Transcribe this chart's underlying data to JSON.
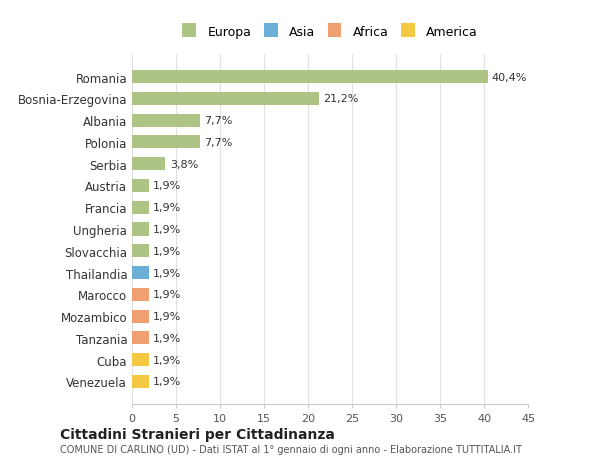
{
  "countries": [
    "Romania",
    "Bosnia-Erzegovina",
    "Albania",
    "Polonia",
    "Serbia",
    "Austria",
    "Francia",
    "Ungheria",
    "Slovacchia",
    "Thailandia",
    "Marocco",
    "Mozambico",
    "Tanzania",
    "Cuba",
    "Venezuela"
  ],
  "values": [
    40.4,
    21.2,
    7.7,
    7.7,
    3.8,
    1.9,
    1.9,
    1.9,
    1.9,
    1.9,
    1.9,
    1.9,
    1.9,
    1.9,
    1.9
  ],
  "labels": [
    "40,4%",
    "21,2%",
    "7,7%",
    "7,7%",
    "3,8%",
    "1,9%",
    "1,9%",
    "1,9%",
    "1,9%",
    "1,9%",
    "1,9%",
    "1,9%",
    "1,9%",
    "1,9%",
    "1,9%"
  ],
  "continent": [
    "Europa",
    "Europa",
    "Europa",
    "Europa",
    "Europa",
    "Europa",
    "Europa",
    "Europa",
    "Europa",
    "Asia",
    "Africa",
    "Africa",
    "Africa",
    "America",
    "America"
  ],
  "colors": {
    "Europa": "#aec484",
    "Asia": "#6baed6",
    "Africa": "#f0a070",
    "America": "#f5c842"
  },
  "legend_colors": {
    "Europa": "#aec484",
    "Asia": "#6baed6",
    "Africa": "#f0a070",
    "America": "#f5c842"
  },
  "title": "Cittadini Stranieri per Cittadinanza",
  "subtitle": "COMUNE DI CARLINO (UD) - Dati ISTAT al 1° gennaio di ogni anno - Elaborazione TUTTITALIA.IT",
  "xlim": [
    0,
    45
  ],
  "xticks": [
    0,
    5,
    10,
    15,
    20,
    25,
    30,
    35,
    40,
    45
  ],
  "bg_color": "#ffffff",
  "grid_color": "#e0e0e0",
  "bar_height": 0.6
}
